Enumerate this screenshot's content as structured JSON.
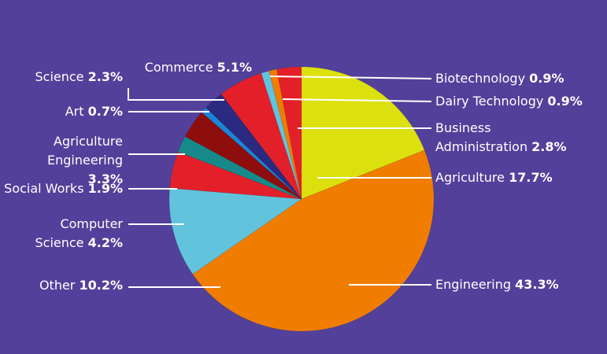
{
  "chart_data": {
    "type": "pie",
    "categories": [
      "Agriculture",
      "Engineering",
      "Other",
      "Computer Science",
      "Social Works",
      "Agriculture Engineering",
      "Art",
      "Science",
      "Commerce",
      "Biotechnology",
      "Dairy Technology",
      "Business Administration"
    ],
    "values": [
      17.7,
      43.3,
      10.2,
      4.2,
      1.9,
      3.3,
      0.7,
      2.3,
      5.1,
      0.9,
      0.9,
      2.8
    ],
    "value_labels": [
      "17.7%",
      "43.3%",
      "10.2%",
      "4.2%",
      "1.9%",
      "3.3%",
      "0.7%",
      "2.3%",
      "5.1%",
      "0.9%",
      "0.9%",
      "2.8%"
    ],
    "colors": [
      "#dde00f",
      "#f07d00",
      "#62c3dc",
      "#e3202a",
      "#168a8a",
      "#8e0e0e",
      "#1a86d6",
      "#2a2a80",
      "#e3202a",
      "#62c3dc",
      "#f07d00",
      "#e3202a"
    ]
  }
}
